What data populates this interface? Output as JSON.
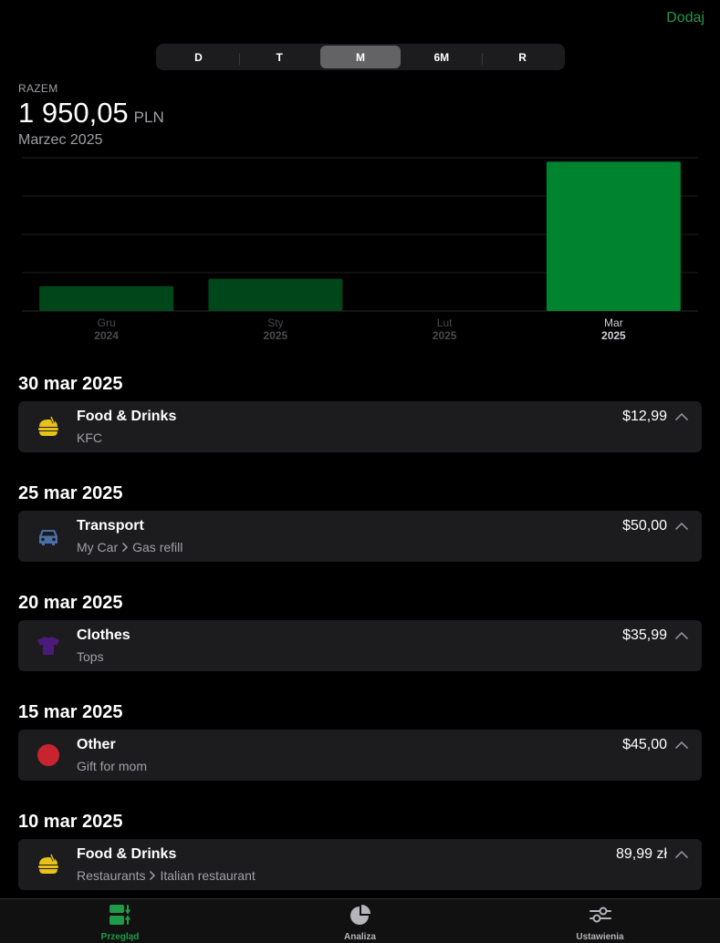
{
  "header": {
    "add_label": "Dodaj"
  },
  "range_selector": {
    "options": [
      "D",
      "T",
      "M",
      "6M",
      "R"
    ],
    "selected": "M"
  },
  "summary": {
    "label": "RAZEM",
    "amount": "1 950,05",
    "currency": "PLN",
    "period": "Marzec 2025"
  },
  "colors": {
    "accent": "#1f9a48",
    "bar_selected": "#00832f",
    "bar_dim": "#00461b",
    "card": "#1c1c1e"
  },
  "chart_data": {
    "type": "bar",
    "categories": [
      {
        "month": "Gru",
        "year": "2024"
      },
      {
        "month": "Sty",
        "year": "2025"
      },
      {
        "month": "Lut",
        "year": "2025"
      },
      {
        "month": "Mar",
        "year": "2025"
      }
    ],
    "values": [
      325,
      420,
      0,
      1950.05
    ],
    "selected_index": 3,
    "ylim": [
      0,
      2000
    ],
    "gridlines": 5,
    "legend": "none"
  },
  "transactions": [
    {
      "date": "30 mar 2025",
      "category": "Food & Drinks",
      "subtitle": [
        "KFC"
      ],
      "amount": "$12,99",
      "icon": "burger-icon",
      "icon_color": "#e8c21a"
    },
    {
      "date": "25 mar 2025",
      "category": "Transport",
      "subtitle": [
        "My Car",
        "Gas refill"
      ],
      "amount": "$50,00",
      "icon": "car-icon",
      "icon_color": "#4a6fa5"
    },
    {
      "date": "20 mar 2025",
      "category": "Clothes",
      "subtitle": [
        "Tops"
      ],
      "amount": "$35,99",
      "icon": "shirt-icon",
      "icon_color": "#4b1a7a"
    },
    {
      "date": "15 mar 2025",
      "category": "Other",
      "subtitle": [
        "Gift for mom"
      ],
      "amount": "$45,00",
      "icon": "circle-icon",
      "icon_color": "#c8242f"
    },
    {
      "date": "10 mar 2025",
      "category": "Food & Drinks",
      "subtitle": [
        "Restaurants",
        "Italian restaurant"
      ],
      "amount": "89,99 zł",
      "icon": "burger-icon",
      "icon_color": "#e8c21a"
    }
  ],
  "tabbar": {
    "tabs": [
      {
        "label": "Przegląd",
        "icon": "overview-icon",
        "active": true
      },
      {
        "label": "Analiza",
        "icon": "pie-chart-icon",
        "active": false
      },
      {
        "label": "Ustawienia",
        "icon": "sliders-icon",
        "active": false
      }
    ]
  }
}
